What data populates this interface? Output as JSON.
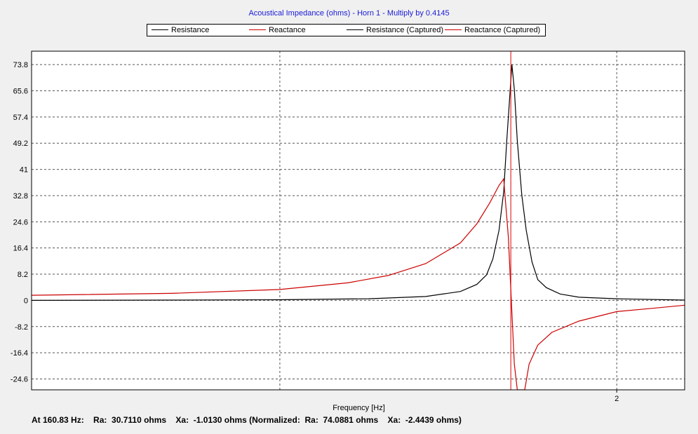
{
  "chart_data": {
    "type": "line",
    "title": "Acoustical Impedance (ohms) - Horn 1 - Multiply by 0.4145",
    "xlabel": "Frequency [Hz]",
    "ylabel": "",
    "x_scale": "log",
    "x_tick_labels": [
      {
        "x": 200,
        "label": "2"
      }
    ],
    "y_ticks": [
      73.8,
      65.6,
      57.4,
      49.2,
      41,
      32.8,
      24.6,
      16.4,
      8.2,
      0,
      -8.2,
      -16.4,
      -24.6
    ],
    "y_tick_labels": [
      "73.8",
      "65.6",
      "57.4",
      "49.2",
      "41",
      "32.8",
      "24.6",
      "16.4",
      "8.2",
      "0",
      "-8.2",
      "-16.4",
      "-24.6"
    ],
    "ylim": [
      -28,
      78
    ],
    "xlim": [
      60,
      230
    ],
    "grid": true,
    "legend_position": "top",
    "cursor_x": 160.83,
    "series": [
      {
        "name": "Resistance",
        "color": "#000000",
        "points": [
          [
            60,
            0.0
          ],
          [
            80,
            0.1
          ],
          [
            100,
            0.2
          ],
          [
            120,
            0.5
          ],
          [
            135,
            1.2
          ],
          [
            145,
            2.8
          ],
          [
            150,
            5.0
          ],
          [
            153,
            8.0
          ],
          [
            155,
            13.0
          ],
          [
            157,
            22.0
          ],
          [
            158.5,
            34.0
          ],
          [
            159.5,
            50.0
          ],
          [
            160.5,
            64.0
          ],
          [
            161.2,
            73.8
          ],
          [
            162,
            66.0
          ],
          [
            163,
            50.0
          ],
          [
            164.5,
            33.0
          ],
          [
            166,
            22.0
          ],
          [
            168,
            12.0
          ],
          [
            170,
            6.5
          ],
          [
            173,
            4.0
          ],
          [
            178,
            2.0
          ],
          [
            185,
            1.0
          ],
          [
            200,
            0.5
          ],
          [
            230,
            0.1
          ]
        ]
      },
      {
        "name": "Reactance",
        "color": "#cc0000",
        "points": [
          [
            60,
            1.6
          ],
          [
            80,
            2.2
          ],
          [
            100,
            3.4
          ],
          [
            115,
            5.5
          ],
          [
            125,
            7.8
          ],
          [
            135,
            11.5
          ],
          [
            145,
            18.0
          ],
          [
            150,
            24.0
          ],
          [
            154,
            30.5
          ],
          [
            157,
            36.0
          ],
          [
            158.5,
            38.0
          ],
          [
            160,
            20.0
          ],
          [
            161,
            0.0
          ],
          [
            162,
            -20.0
          ],
          [
            163,
            -28.0
          ],
          [
            165.5,
            -28.0
          ],
          [
            167,
            -20.0
          ],
          [
            170,
            -14.0
          ],
          [
            175,
            -10.0
          ],
          [
            185,
            -6.5
          ],
          [
            200,
            -3.5
          ],
          [
            215,
            -2.5
          ],
          [
            230,
            -1.5
          ]
        ]
      },
      {
        "name": "Resistance (Captured)",
        "color": "#000000",
        "points": []
      },
      {
        "name": "Reactance (Captured)",
        "color": "#cc0000",
        "points": []
      }
    ]
  },
  "status": {
    "text": "At 160.83 Hz:    Ra:  30.7110 ohms    Xa:  -1.0130 ohms (Normalized:  Ra:  74.0881 ohms    Xa:  -2.4439 ohms)"
  }
}
